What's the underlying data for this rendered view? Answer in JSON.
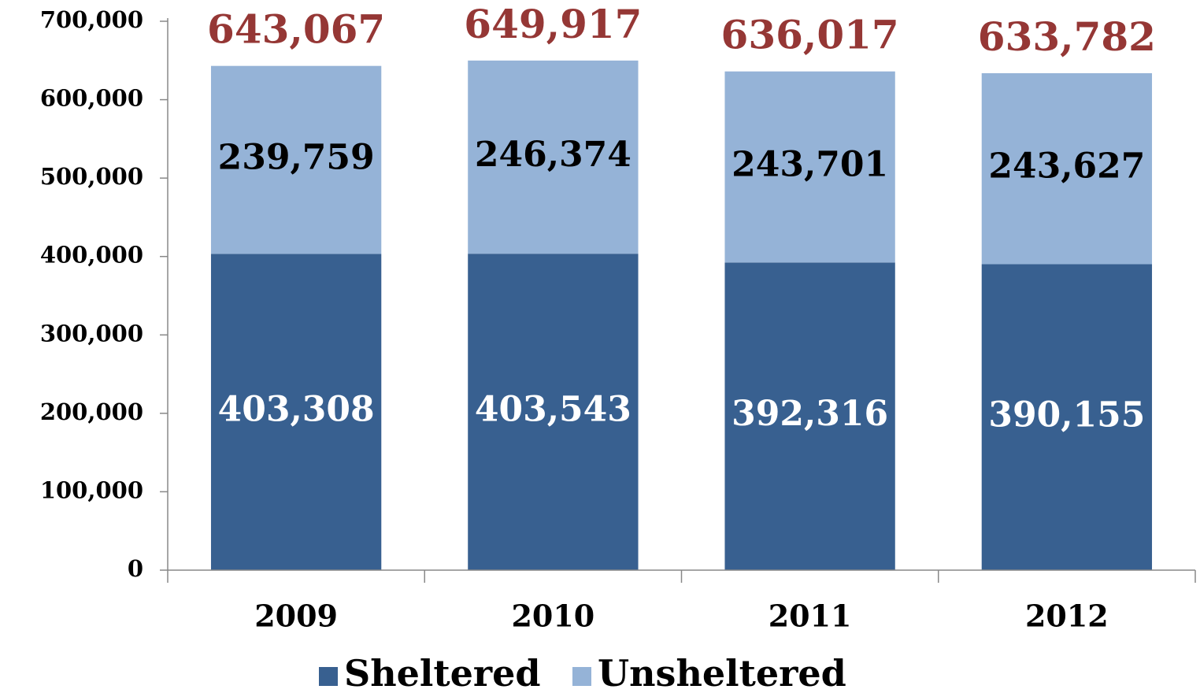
{
  "chart_data": {
    "type": "stacked_bar",
    "categories": [
      "2009",
      "2010",
      "2011",
      "2012"
    ],
    "series": [
      {
        "name": "Sheltered",
        "color": "#386090",
        "values": [
          403308,
          403543,
          392316,
          390155
        ],
        "value_labels": [
          "403,308",
          "403,543",
          "392,316",
          "390,155"
        ],
        "label_color": "#ffffff"
      },
      {
        "name": "Unsheltered",
        "color": "#95b3d7",
        "values": [
          239759,
          246374,
          243701,
          243627
        ],
        "value_labels": [
          "239,759",
          "246,374",
          "243,701",
          "243,627"
        ],
        "label_color": "#000000"
      }
    ],
    "totals": {
      "values": [
        643067,
        649917,
        636017,
        633782
      ],
      "value_labels": [
        "643,067",
        "649,917",
        "636,017",
        "633,782"
      ],
      "color": "#953735"
    },
    "ylim": [
      0,
      700000
    ],
    "yticks": [
      0,
      {
        "value": 100000,
        "label": "100,000"
      },
      {
        "value": 200000,
        "label": "200,000"
      },
      {
        "value": 300000,
        "label": "300,000"
      },
      {
        "value": 400000,
        "label": "400,000"
      },
      {
        "value": 500000,
        "label": "500,000"
      },
      {
        "value": 600000,
        "label": "600,000"
      },
      {
        "value": 700000,
        "label": "700,000"
      }
    ],
    "legend": "bottom",
    "grid": false
  }
}
